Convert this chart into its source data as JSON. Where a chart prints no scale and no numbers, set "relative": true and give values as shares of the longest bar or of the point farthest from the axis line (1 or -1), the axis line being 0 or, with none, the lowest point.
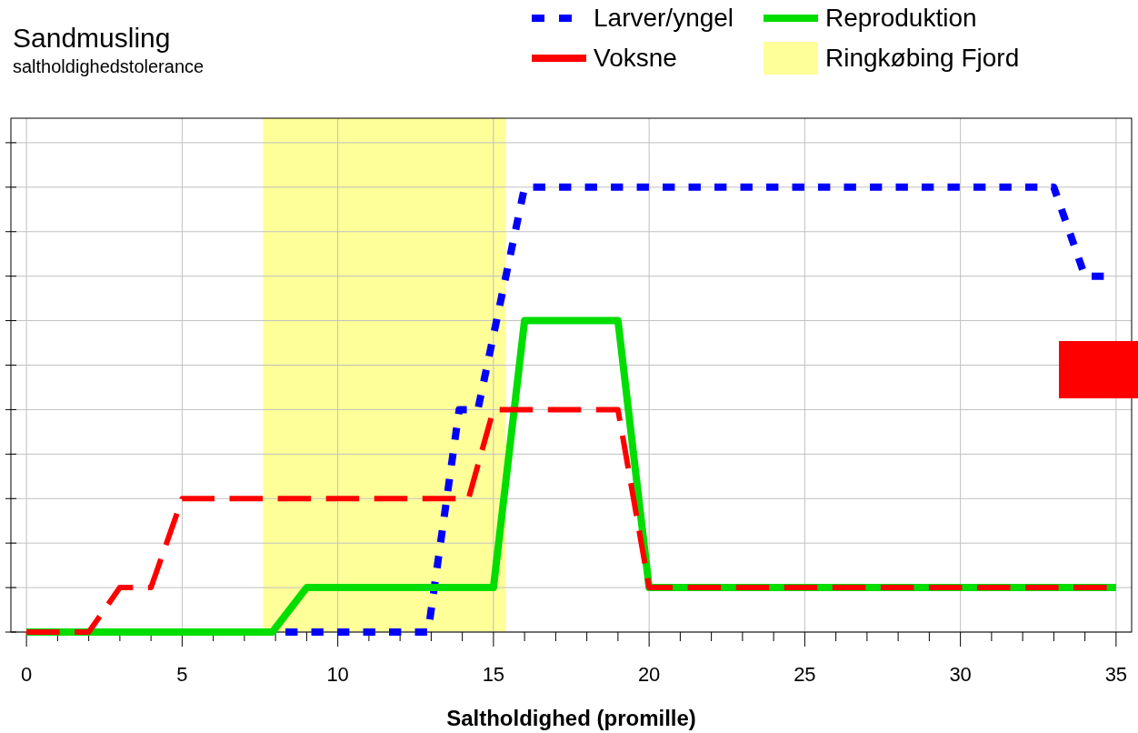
{
  "chart_data": {
    "type": "line",
    "title": "Sandmusling",
    "subtitle": "saltholdighedstolerance",
    "xlabel": "Saltholdighed (promille)",
    "relative": true,
    "xlim": [
      -0.5,
      35.5
    ],
    "xticks": [
      0,
      {
        "value": 1,
        "label": null
      },
      {
        "value": 2,
        "label": null
      },
      {
        "value": 3,
        "label": null
      },
      {
        "value": 4,
        "label": null
      },
      5,
      {
        "value": 6,
        "label": null
      },
      {
        "value": 7,
        "label": null
      },
      {
        "value": 8,
        "label": null
      },
      {
        "value": 9,
        "label": null
      },
      10,
      {
        "value": 11,
        "label": null
      },
      {
        "value": 12,
        "label": null
      },
      {
        "value": 13,
        "label": null
      },
      {
        "value": 14,
        "label": null
      },
      15,
      {
        "value": 16,
        "label": null
      },
      {
        "value": 17,
        "label": null
      },
      {
        "value": 18,
        "label": null
      },
      {
        "value": 19,
        "label": null
      },
      20,
      {
        "value": 21,
        "label": null
      },
      {
        "value": 22,
        "label": null
      },
      {
        "value": 23,
        "label": null
      },
      {
        "value": 24,
        "label": null
      },
      25,
      {
        "value": 26,
        "label": null
      },
      {
        "value": 27,
        "label": null
      },
      {
        "value": 28,
        "label": null
      },
      {
        "value": 29,
        "label": null
      },
      30,
      {
        "value": 31,
        "label": null
      },
      {
        "value": 32,
        "label": null
      },
      {
        "value": 33,
        "label": null
      },
      {
        "value": 34,
        "label": null
      },
      35
    ],
    "grid": true,
    "legend": "top right",
    "tick_labels": "x",
    "bands": [
      {
        "axis": "x",
        "from": 7.6,
        "to": 15.4,
        "label": "Ringkøbing Fjord",
        "color": "#ffff99"
      }
    ],
    "series": [
      {
        "name": "Larver/yngel",
        "color": "#0000ff",
        "line_style": "dashed",
        "x": [
          0,
          12.9,
          13.9,
          14.5,
          16,
          33,
          34,
          34.7
        ],
        "values": [
          0,
          0,
          0.5,
          0.5,
          1,
          1,
          0.8,
          0.8
        ]
      },
      {
        "name": "Voksne",
        "color": "#ff0000",
        "line_style": "dashed",
        "x": [
          0,
          2,
          3,
          4,
          5,
          14.2,
          15,
          19,
          20,
          34.7
        ],
        "values": [
          0,
          0,
          0.1,
          0.1,
          0.3,
          0.3,
          0.5,
          0.5,
          0.1,
          0.1
        ]
      },
      {
        "name": "Reproduktion",
        "color": "#00dd00",
        "line_style": "solid",
        "x": [
          0,
          7.9,
          9,
          15,
          16,
          19,
          20,
          35
        ],
        "values": [
          0,
          0,
          0.1,
          0.1,
          0.7,
          0.7,
          0.1,
          0.1
        ]
      }
    ]
  }
}
